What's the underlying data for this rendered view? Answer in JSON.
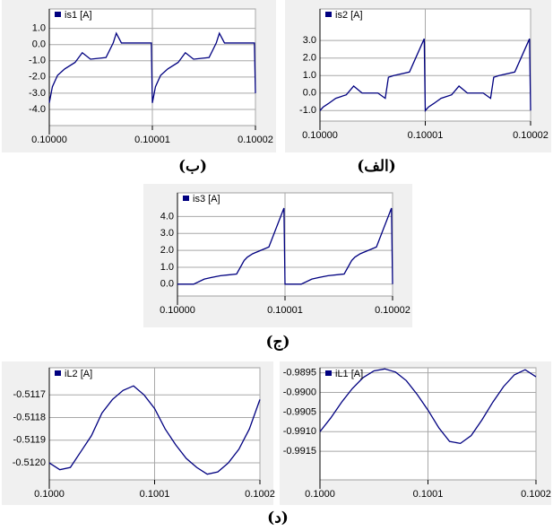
{
  "chart_data": [
    {
      "type": "line",
      "series": [
        {
          "name": "is1 [A]",
          "color": "#000080",
          "values": [
            -3.6,
            -2.6,
            -1.9,
            -1.5,
            -1.1,
            -0.5,
            -0.9,
            -0.8,
            0.1,
            0.7,
            0.1,
            0.1,
            0.1,
            -3.6,
            -2.6,
            -1.9,
            -1.5,
            -1.1,
            -0.5,
            -0.9,
            -0.8,
            0.1,
            0.7,
            0.1,
            0.1,
            0.1,
            -3.0
          ]
        }
      ],
      "x": [
        0.1,
        0.1000003,
        0.1000008,
        0.1000015,
        0.1000025,
        0.1000032,
        0.100004,
        0.1000055,
        0.1000062,
        0.1000065,
        0.100007,
        0.1000085,
        0.1000099,
        0.10001,
        0.1000103,
        0.1000108,
        0.1000115,
        0.1000125,
        0.1000132,
        0.100014,
        0.1000155,
        0.1000162,
        0.1000165,
        0.100017,
        0.1000185,
        0.1000199,
        0.10002
      ],
      "xlim": [
        0.1,
        0.10002
      ],
      "xticks": [
        {
          "value": 0.1,
          "label": "0.10000"
        },
        {
          "value": 0.10001,
          "label": "0.10001"
        },
        {
          "value": 0.10002,
          "label": "0.10002"
        }
      ],
      "ylim": [
        -5.0,
        2.2
      ],
      "yticks": [
        {
          "value": 1,
          "label": "1.0"
        },
        {
          "value": 0,
          "label": "0.0"
        },
        {
          "value": -1,
          "label": "-1.0"
        },
        {
          "value": -2,
          "label": "-2.0"
        },
        {
          "value": -3,
          "label": "-3.0"
        },
        {
          "value": -4,
          "label": "-4.0"
        }
      ],
      "grid": true
    },
    {
      "type": "line",
      "series": [
        {
          "name": "is2 [A]",
          "color": "#000080",
          "values": [
            -1.0,
            -0.8,
            -0.6,
            -0.3,
            -0.1,
            0.4,
            0.0,
            0.0,
            -0.3,
            0.9,
            1.0,
            1.2,
            3.1,
            -1.0,
            -0.8,
            -0.6,
            -0.3,
            -0.1,
            0.4,
            0.0,
            0.0,
            -0.3,
            0.9,
            1.0,
            1.2,
            3.1,
            -1.0
          ]
        }
      ],
      "x": [
        0.1,
        0.1000003,
        0.1000008,
        0.1000015,
        0.1000025,
        0.1000032,
        0.100004,
        0.1000055,
        0.1000062,
        0.1000065,
        0.100007,
        0.1000085,
        0.1000099,
        0.10001,
        0.1000103,
        0.1000108,
        0.1000115,
        0.1000125,
        0.1000132,
        0.100014,
        0.1000155,
        0.1000162,
        0.1000165,
        0.100017,
        0.1000185,
        0.1000199,
        0.10002
      ],
      "xlim": [
        0.1,
        0.10002
      ],
      "xticks": [
        {
          "value": 0.1,
          "label": "0.10000"
        },
        {
          "value": 0.10001,
          "label": "0.10001"
        },
        {
          "value": 0.10002,
          "label": "0.10002"
        }
      ],
      "ylim": [
        -1.6,
        4.8
      ],
      "yticks": [
        {
          "value": 3,
          "label": "3.0"
        },
        {
          "value": 2,
          "label": "2.0"
        },
        {
          "value": 1,
          "label": "1.0"
        },
        {
          "value": 0,
          "label": "0.0"
        },
        {
          "value": -1,
          "label": "-1.0"
        }
      ],
      "grid": true
    },
    {
      "type": "line",
      "series": [
        {
          "name": "is3 [A]",
          "color": "#000080",
          "values": [
            0.0,
            0.0,
            0.0,
            0.0,
            0.3,
            0.4,
            0.5,
            0.6,
            1.4,
            1.6,
            1.8,
            2.2,
            4.5,
            0.0,
            0.0,
            0.0,
            0.0,
            0.3,
            0.4,
            0.5,
            0.6,
            1.4,
            1.6,
            1.8,
            2.2,
            4.5,
            0.0
          ]
        }
      ],
      "x": [
        0.1,
        0.1000003,
        0.1000008,
        0.1000015,
        0.1000025,
        0.1000032,
        0.100004,
        0.1000055,
        0.1000062,
        0.1000065,
        0.100007,
        0.1000085,
        0.1000099,
        0.10001,
        0.1000103,
        0.1000108,
        0.1000115,
        0.1000125,
        0.1000132,
        0.100014,
        0.1000155,
        0.1000162,
        0.1000165,
        0.100017,
        0.1000185,
        0.1000199,
        0.10002
      ],
      "xlim": [
        0.1,
        0.10002
      ],
      "xticks": [
        {
          "value": 0.1,
          "label": "0.10000"
        },
        {
          "value": 0.10001,
          "label": "0.10001"
        },
        {
          "value": 0.10002,
          "label": "0.10002"
        }
      ],
      "ylim": [
        -0.7,
        5.4
      ],
      "yticks": [
        {
          "value": 4,
          "label": "4.0"
        },
        {
          "value": 3,
          "label": "3.0"
        },
        {
          "value": 2,
          "label": "2.0"
        },
        {
          "value": 1,
          "label": "1.0"
        },
        {
          "value": 0,
          "label": "0.0"
        }
      ],
      "grid": true
    },
    {
      "type": "line",
      "series": [
        {
          "name": "iL2 [A]",
          "color": "#000080",
          "values": [
            -0.512,
            -0.51203,
            -0.51202,
            -0.51195,
            -0.51188,
            -0.51178,
            -0.51172,
            -0.51168,
            -0.51166,
            -0.5117,
            -0.51176,
            -0.51185,
            -0.51192,
            -0.51198,
            -0.51202,
            -0.51205,
            -0.51204,
            -0.512,
            -0.51194,
            -0.51185,
            -0.51172
          ]
        }
      ],
      "x": [
        0.1,
        0.10001,
        0.10002,
        0.10003,
        0.10004,
        0.10005,
        0.10006,
        0.10007,
        0.10008,
        0.10009,
        0.1001,
        0.10011,
        0.10012,
        0.10013,
        0.10014,
        0.10015,
        0.10016,
        0.10017,
        0.10018,
        0.10019,
        0.1002
      ],
      "xlim": [
        0.1,
        0.1002
      ],
      "xticks": [
        {
          "value": 0.1,
          "label": "0.1000"
        },
        {
          "value": 0.1001,
          "label": "0.1001"
        },
        {
          "value": 0.1002,
          "label": "0.1002"
        }
      ],
      "ylim": [
        -0.512075,
        -0.51158
      ],
      "yticks": [
        -0.5117,
        -0.5118,
        -0.5119,
        {
          "value": -0.512,
          "label": "-0.5120"
        }
      ],
      "grid": true
    },
    {
      "type": "line",
      "series": [
        {
          "name": "iL1 [A]",
          "color": "#000080",
          "values": [
            -0.991,
            -0.99065,
            -0.99025,
            -0.9899,
            -0.98962,
            -0.98945,
            -0.9894,
            -0.98948,
            -0.9897,
            -0.99005,
            -0.99045,
            -0.9909,
            -0.99125,
            -0.9913,
            -0.9911,
            -0.9907,
            -0.99025,
            -0.98985,
            -0.98955,
            -0.98942,
            -0.9896
          ]
        }
      ],
      "x": [
        0.1,
        0.10001,
        0.10002,
        0.10003,
        0.10004,
        0.10005,
        0.10006,
        0.10007,
        0.10008,
        0.10009,
        0.1001,
        0.10011,
        0.10012,
        0.10013,
        0.10014,
        0.10015,
        0.10016,
        0.10017,
        0.10018,
        0.10019,
        0.1002
      ],
      "xlim": [
        0.1,
        0.1002
      ],
      "xticks": [
        {
          "value": 0.1,
          "label": "0.1000"
        },
        {
          "value": 0.1001,
          "label": "0.1001"
        },
        {
          "value": 0.1002,
          "label": "0.1002"
        }
      ],
      "ylim": [
        -0.99223,
        -0.98937
      ],
      "yticks": [
        -0.9895,
        {
          "value": -0.99,
          "label": "-0.9900"
        },
        -0.9905,
        {
          "value": -0.991,
          "label": "-0.9910"
        },
        -0.9915
      ],
      "grid": true
    }
  ],
  "captions": [
    "(ب)",
    "(الف)",
    "(ج)",
    "(د)"
  ]
}
